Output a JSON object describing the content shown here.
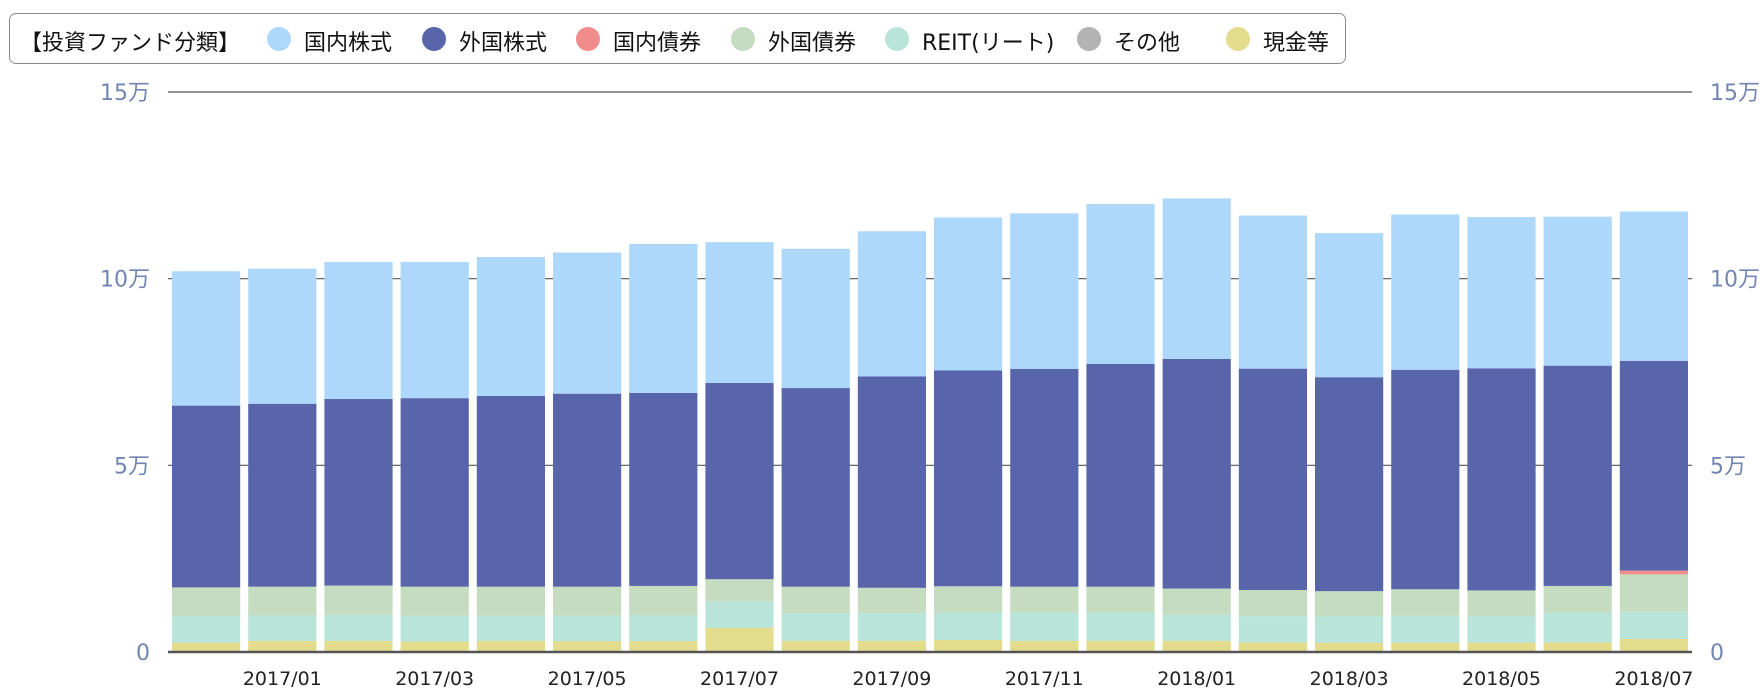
{
  "legend": {
    "title": "【投資ファンド分類】"
  },
  "chart_data": {
    "type": "bar",
    "stacked": true,
    "title": "",
    "xlabel": "",
    "ylabel": "",
    "ylim": [
      0,
      150000
    ],
    "y_ticks": [
      0,
      50000,
      100000,
      150000
    ],
    "y_tick_labels": [
      "0",
      "5万",
      "10万",
      "15万"
    ],
    "dual_y_axis": true,
    "grid": true,
    "legend_position": "top",
    "categories": [
      "2016/12",
      "2017/01",
      "2017/02",
      "2017/03",
      "2017/04",
      "2017/05",
      "2017/06",
      "2017/07",
      "2017/08",
      "2017/09",
      "2017/10",
      "2017/11",
      "2017/12",
      "2018/01",
      "2018/02",
      "2018/03",
      "2018/04",
      "2018/05",
      "2018/06",
      "2018/07"
    ],
    "x_tick_labels": [
      "2017/01",
      "2017/03",
      "2017/05",
      "2017/07",
      "2017/09",
      "2017/11",
      "2018/01",
      "2018/03",
      "2018/05",
      "2018/07"
    ],
    "series": [
      {
        "name": "現金等",
        "color": "#e2dc8c",
        "values": [
          2500,
          3000,
          3000,
          2800,
          3000,
          2900,
          2900,
          6500,
          3000,
          3000,
          3200,
          3000,
          3000,
          3000,
          2600,
          2500,
          2500,
          2500,
          2600,
          3500
        ]
      },
      {
        "name": "その他",
        "color": "#b3b3b3",
        "values": [
          0,
          0,
          0,
          0,
          0,
          0,
          0,
          0,
          0,
          0,
          0,
          0,
          0,
          0,
          0,
          0,
          0,
          0,
          0,
          0
        ]
      },
      {
        "name": "REIT(リート)",
        "color": "#b8e4da",
        "values": [
          7000,
          6900,
          7000,
          7000,
          6800,
          6900,
          7000,
          7000,
          7400,
          7400,
          7400,
          7500,
          7500,
          7000,
          7000,
          7000,
          7300,
          7000,
          7900,
          7300
        ]
      },
      {
        "name": "外国債券",
        "color": "#c6dcc0",
        "values": [
          7800,
          7600,
          7800,
          7700,
          7700,
          7700,
          7800,
          6000,
          7100,
          6800,
          7000,
          7000,
          7000,
          7000,
          7000,
          6800,
          7000,
          7000,
          7200,
          10000
        ]
      },
      {
        "name": "国内債券",
        "color": "#f18c8c",
        "values": [
          0,
          0,
          0,
          0,
          0,
          0,
          0,
          0,
          0,
          0,
          0,
          0,
          0,
          0,
          0,
          0,
          0,
          0,
          0,
          1000
        ]
      },
      {
        "name": "外国株式",
        "color": "#5865aa",
        "values": [
          48700,
          49000,
          50000,
          50500,
          51100,
          51700,
          51700,
          52600,
          53200,
          56600,
          57800,
          58300,
          59700,
          61500,
          59300,
          57300,
          58800,
          59500,
          59000,
          56200
        ]
      },
      {
        "name": "国内株式",
        "color": "#add8fb",
        "values": [
          36000,
          36200,
          36700,
          36500,
          37200,
          37800,
          39900,
          37700,
          37300,
          38900,
          41000,
          41700,
          42800,
          43000,
          41000,
          38600,
          41600,
          40500,
          39900,
          40000
        ]
      }
    ]
  }
}
